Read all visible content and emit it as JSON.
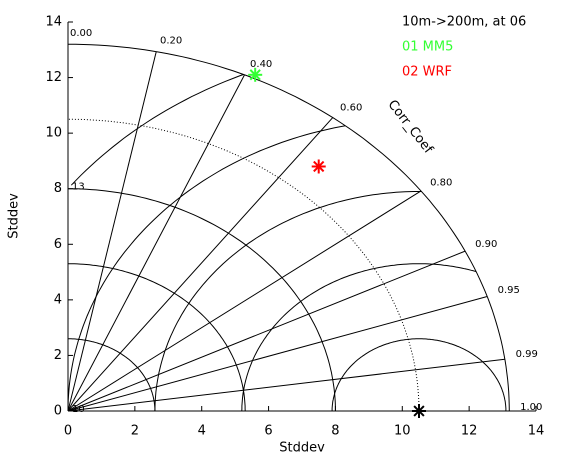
{
  "chart_data": {
    "type": "taylor",
    "title": "10m->200m, at 06",
    "x_label": "Stddev",
    "y_label": "Stddev",
    "xlim": [
      0,
      14
    ],
    "ylim": [
      0,
      14
    ],
    "xticks": [
      0,
      2,
      4,
      6,
      8,
      10,
      12,
      14
    ],
    "yticks": [
      0,
      2,
      4,
      6,
      8,
      10,
      12,
      14
    ],
    "correlation_label": "Corr_Coef",
    "correlation_ticks": [
      {
        "value": 0,
        "label": "0.00"
      },
      {
        "value": 0.2,
        "label": "0.20"
      },
      {
        "value": 0.4,
        "label": "0.40"
      },
      {
        "value": 0.6,
        "label": "0.60"
      },
      {
        "value": 0.8,
        "label": "0.80"
      },
      {
        "value": 0.9,
        "label": "0.90"
      },
      {
        "value": 0.95,
        "label": "0.95"
      },
      {
        "value": 0.99,
        "label": "0.99"
      },
      {
        "value": 1,
        "label": "1.00"
      }
    ],
    "std_arcs": [
      2.6,
      5.3,
      8.0,
      13.2
    ],
    "reference": {
      "std": 10.5,
      "color": "#000000"
    },
    "rms_arcs": [
      {
        "radius": 2.6
      },
      {
        "radius": 5.3
      },
      {
        "radius": 7.9
      },
      {
        "radius": 10.5,
        "label": "10"
      },
      {
        "radius": 13.2,
        "label": "13"
      }
    ],
    "series": [
      {
        "name": "01 MM5",
        "color": "#33ff33",
        "x": 5.6,
        "y": 12.1
      },
      {
        "name": "02 WRF",
        "color": "#ff0000",
        "x": 7.5,
        "y": 8.8
      }
    ]
  }
}
